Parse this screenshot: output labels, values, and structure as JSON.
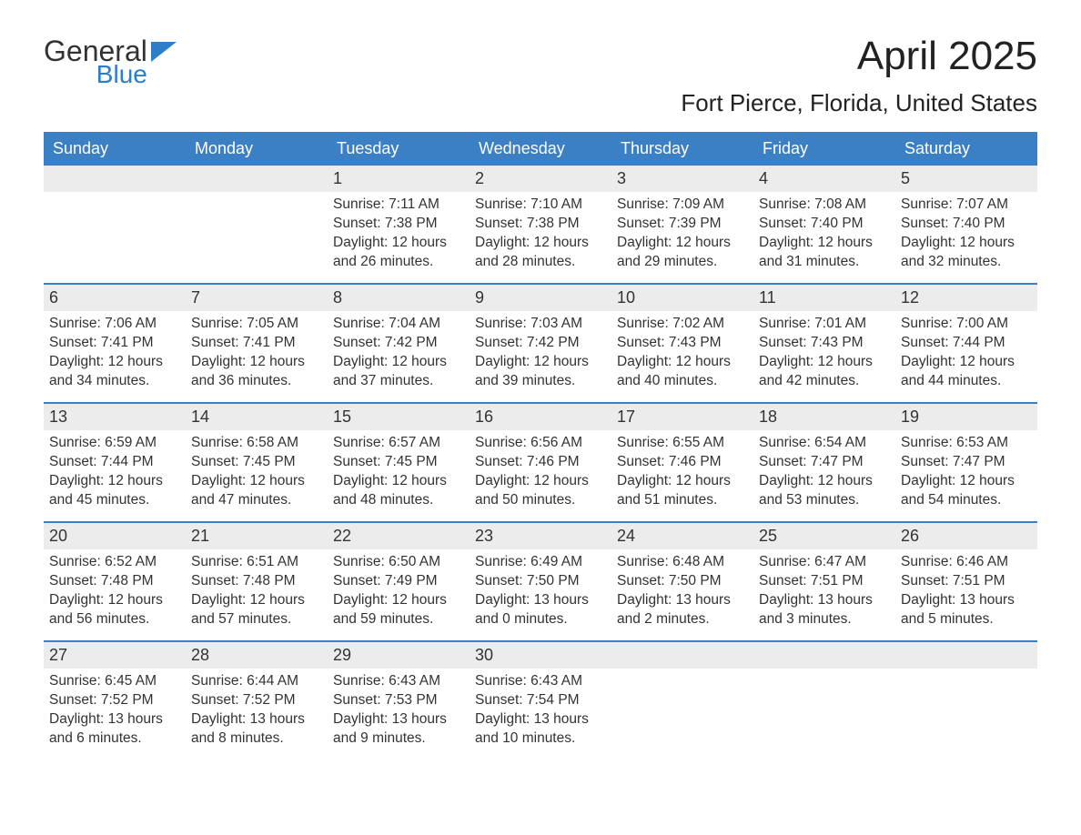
{
  "brand": {
    "name_general": "General",
    "name_blue": "Blue",
    "flag_color": "#2d7dc9"
  },
  "title": "April 2025",
  "location": "Fort Pierce, Florida, United States",
  "weekdays": [
    "Sunday",
    "Monday",
    "Tuesday",
    "Wednesday",
    "Thursday",
    "Friday",
    "Saturday"
  ],
  "colors": {
    "header_bg": "#3b7fc4",
    "header_text": "#ffffff",
    "daynum_bg": "#ececec",
    "border": "#3b7fc4",
    "text": "#333333",
    "background": "#ffffff"
  },
  "typography": {
    "title_fontsize": 44,
    "location_fontsize": 26,
    "body_fontsize": 15.5,
    "weekday_fontsize": 18
  },
  "layout": {
    "cols": 7,
    "rows": 5
  },
  "weeks": [
    [
      {
        "day": "",
        "sunrise": "",
        "sunset": "",
        "daylight1": "",
        "daylight2": ""
      },
      {
        "day": "",
        "sunrise": "",
        "sunset": "",
        "daylight1": "",
        "daylight2": ""
      },
      {
        "day": "1",
        "sunrise": "Sunrise: 7:11 AM",
        "sunset": "Sunset: 7:38 PM",
        "daylight1": "Daylight: 12 hours",
        "daylight2": "and 26 minutes."
      },
      {
        "day": "2",
        "sunrise": "Sunrise: 7:10 AM",
        "sunset": "Sunset: 7:38 PM",
        "daylight1": "Daylight: 12 hours",
        "daylight2": "and 28 minutes."
      },
      {
        "day": "3",
        "sunrise": "Sunrise: 7:09 AM",
        "sunset": "Sunset: 7:39 PM",
        "daylight1": "Daylight: 12 hours",
        "daylight2": "and 29 minutes."
      },
      {
        "day": "4",
        "sunrise": "Sunrise: 7:08 AM",
        "sunset": "Sunset: 7:40 PM",
        "daylight1": "Daylight: 12 hours",
        "daylight2": "and 31 minutes."
      },
      {
        "day": "5",
        "sunrise": "Sunrise: 7:07 AM",
        "sunset": "Sunset: 7:40 PM",
        "daylight1": "Daylight: 12 hours",
        "daylight2": "and 32 minutes."
      }
    ],
    [
      {
        "day": "6",
        "sunrise": "Sunrise: 7:06 AM",
        "sunset": "Sunset: 7:41 PM",
        "daylight1": "Daylight: 12 hours",
        "daylight2": "and 34 minutes."
      },
      {
        "day": "7",
        "sunrise": "Sunrise: 7:05 AM",
        "sunset": "Sunset: 7:41 PM",
        "daylight1": "Daylight: 12 hours",
        "daylight2": "and 36 minutes."
      },
      {
        "day": "8",
        "sunrise": "Sunrise: 7:04 AM",
        "sunset": "Sunset: 7:42 PM",
        "daylight1": "Daylight: 12 hours",
        "daylight2": "and 37 minutes."
      },
      {
        "day": "9",
        "sunrise": "Sunrise: 7:03 AM",
        "sunset": "Sunset: 7:42 PM",
        "daylight1": "Daylight: 12 hours",
        "daylight2": "and 39 minutes."
      },
      {
        "day": "10",
        "sunrise": "Sunrise: 7:02 AM",
        "sunset": "Sunset: 7:43 PM",
        "daylight1": "Daylight: 12 hours",
        "daylight2": "and 40 minutes."
      },
      {
        "day": "11",
        "sunrise": "Sunrise: 7:01 AM",
        "sunset": "Sunset: 7:43 PM",
        "daylight1": "Daylight: 12 hours",
        "daylight2": "and 42 minutes."
      },
      {
        "day": "12",
        "sunrise": "Sunrise: 7:00 AM",
        "sunset": "Sunset: 7:44 PM",
        "daylight1": "Daylight: 12 hours",
        "daylight2": "and 44 minutes."
      }
    ],
    [
      {
        "day": "13",
        "sunrise": "Sunrise: 6:59 AM",
        "sunset": "Sunset: 7:44 PM",
        "daylight1": "Daylight: 12 hours",
        "daylight2": "and 45 minutes."
      },
      {
        "day": "14",
        "sunrise": "Sunrise: 6:58 AM",
        "sunset": "Sunset: 7:45 PM",
        "daylight1": "Daylight: 12 hours",
        "daylight2": "and 47 minutes."
      },
      {
        "day": "15",
        "sunrise": "Sunrise: 6:57 AM",
        "sunset": "Sunset: 7:45 PM",
        "daylight1": "Daylight: 12 hours",
        "daylight2": "and 48 minutes."
      },
      {
        "day": "16",
        "sunrise": "Sunrise: 6:56 AM",
        "sunset": "Sunset: 7:46 PM",
        "daylight1": "Daylight: 12 hours",
        "daylight2": "and 50 minutes."
      },
      {
        "day": "17",
        "sunrise": "Sunrise: 6:55 AM",
        "sunset": "Sunset: 7:46 PM",
        "daylight1": "Daylight: 12 hours",
        "daylight2": "and 51 minutes."
      },
      {
        "day": "18",
        "sunrise": "Sunrise: 6:54 AM",
        "sunset": "Sunset: 7:47 PM",
        "daylight1": "Daylight: 12 hours",
        "daylight2": "and 53 minutes."
      },
      {
        "day": "19",
        "sunrise": "Sunrise: 6:53 AM",
        "sunset": "Sunset: 7:47 PM",
        "daylight1": "Daylight: 12 hours",
        "daylight2": "and 54 minutes."
      }
    ],
    [
      {
        "day": "20",
        "sunrise": "Sunrise: 6:52 AM",
        "sunset": "Sunset: 7:48 PM",
        "daylight1": "Daylight: 12 hours",
        "daylight2": "and 56 minutes."
      },
      {
        "day": "21",
        "sunrise": "Sunrise: 6:51 AM",
        "sunset": "Sunset: 7:48 PM",
        "daylight1": "Daylight: 12 hours",
        "daylight2": "and 57 minutes."
      },
      {
        "day": "22",
        "sunrise": "Sunrise: 6:50 AM",
        "sunset": "Sunset: 7:49 PM",
        "daylight1": "Daylight: 12 hours",
        "daylight2": "and 59 minutes."
      },
      {
        "day": "23",
        "sunrise": "Sunrise: 6:49 AM",
        "sunset": "Sunset: 7:50 PM",
        "daylight1": "Daylight: 13 hours",
        "daylight2": "and 0 minutes."
      },
      {
        "day": "24",
        "sunrise": "Sunrise: 6:48 AM",
        "sunset": "Sunset: 7:50 PM",
        "daylight1": "Daylight: 13 hours",
        "daylight2": "and 2 minutes."
      },
      {
        "day": "25",
        "sunrise": "Sunrise: 6:47 AM",
        "sunset": "Sunset: 7:51 PM",
        "daylight1": "Daylight: 13 hours",
        "daylight2": "and 3 minutes."
      },
      {
        "day": "26",
        "sunrise": "Sunrise: 6:46 AM",
        "sunset": "Sunset: 7:51 PM",
        "daylight1": "Daylight: 13 hours",
        "daylight2": "and 5 minutes."
      }
    ],
    [
      {
        "day": "27",
        "sunrise": "Sunrise: 6:45 AM",
        "sunset": "Sunset: 7:52 PM",
        "daylight1": "Daylight: 13 hours",
        "daylight2": "and 6 minutes."
      },
      {
        "day": "28",
        "sunrise": "Sunrise: 6:44 AM",
        "sunset": "Sunset: 7:52 PM",
        "daylight1": "Daylight: 13 hours",
        "daylight2": "and 8 minutes."
      },
      {
        "day": "29",
        "sunrise": "Sunrise: 6:43 AM",
        "sunset": "Sunset: 7:53 PM",
        "daylight1": "Daylight: 13 hours",
        "daylight2": "and 9 minutes."
      },
      {
        "day": "30",
        "sunrise": "Sunrise: 6:43 AM",
        "sunset": "Sunset: 7:54 PM",
        "daylight1": "Daylight: 13 hours",
        "daylight2": "and 10 minutes."
      },
      {
        "day": "",
        "sunrise": "",
        "sunset": "",
        "daylight1": "",
        "daylight2": ""
      },
      {
        "day": "",
        "sunrise": "",
        "sunset": "",
        "daylight1": "",
        "daylight2": ""
      },
      {
        "day": "",
        "sunrise": "",
        "sunset": "",
        "daylight1": "",
        "daylight2": ""
      }
    ]
  ]
}
